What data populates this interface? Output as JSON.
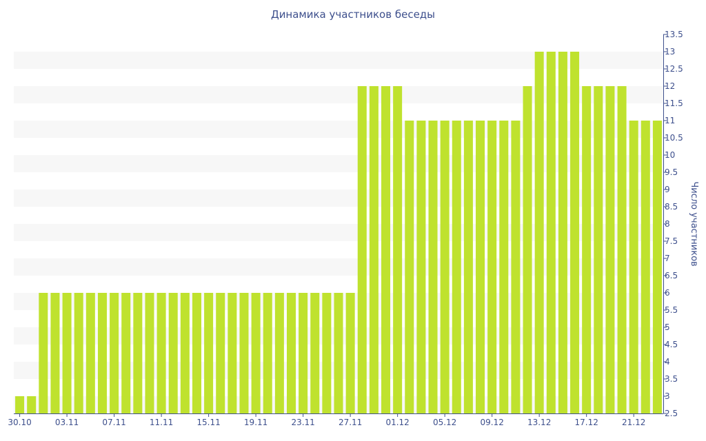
{
  "chart_data": {
    "type": "bar",
    "title": "Динамика участников беседы",
    "xlabel": "",
    "ylabel": "Число участников",
    "ylim": [
      2.5,
      13.5
    ],
    "y_tick_step": 0.5,
    "y_axis_position": "right",
    "grid": "horizontal bands",
    "colors": {
      "bar": "#bfe22e",
      "band": "#f7f7f7",
      "axis": "#3d4f8c",
      "text": "#3d4f8c"
    },
    "categories": [
      "30.10",
      "31.10",
      "01.11",
      "02.11",
      "03.11",
      "04.11",
      "05.11",
      "06.11",
      "07.11",
      "08.11",
      "09.11",
      "10.11",
      "11.11",
      "12.11",
      "13.11",
      "14.11",
      "15.11",
      "16.11",
      "17.11",
      "18.11",
      "19.11",
      "20.11",
      "21.11",
      "22.11",
      "23.11",
      "24.11",
      "25.11",
      "26.11",
      "27.11",
      "28.11",
      "29.11",
      "30.11",
      "01.12",
      "02.12",
      "03.12",
      "04.12",
      "05.12",
      "06.12",
      "07.12",
      "08.12",
      "09.12",
      "10.12",
      "11.12",
      "12.12",
      "13.12",
      "14.12",
      "15.12",
      "16.12",
      "17.12",
      "18.12",
      "19.12",
      "20.12",
      "21.12",
      "22.12",
      "23.12"
    ],
    "x_tick_labels": [
      "30.10",
      "03.11",
      "07.11",
      "11.11",
      "15.11",
      "19.11",
      "23.11",
      "27.11",
      "01.12",
      "05.12",
      "09.12",
      "13.12",
      "17.12",
      "21.12"
    ],
    "values": [
      3,
      3,
      6,
      6,
      6,
      6,
      6,
      6,
      6,
      6,
      6,
      6,
      6,
      6,
      6,
      6,
      6,
      6,
      6,
      6,
      6,
      6,
      6,
      6,
      6,
      6,
      6,
      6,
      6,
      12,
      12,
      12,
      12,
      11,
      11,
      11,
      11,
      11,
      11,
      11,
      11,
      11,
      11,
      12,
      13,
      13,
      13,
      13,
      12,
      12,
      12,
      12,
      11,
      11,
      11
    ]
  }
}
